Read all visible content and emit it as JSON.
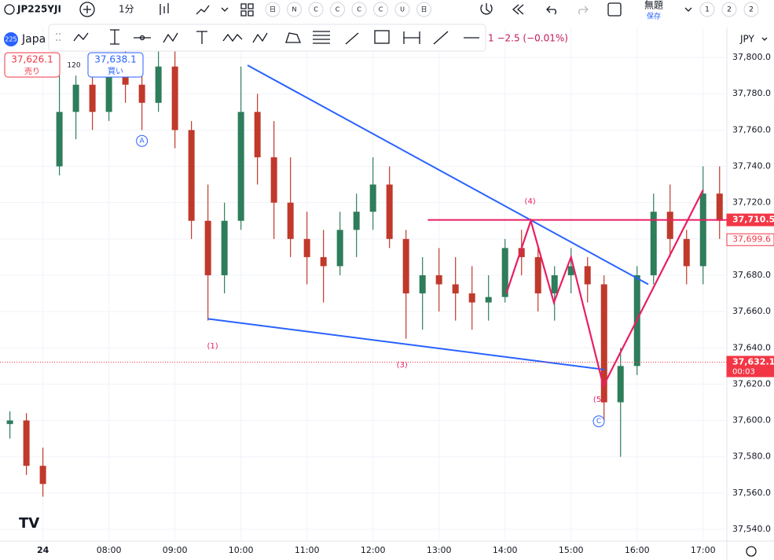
{
  "toolbar": {
    "symbol": "JP225YJI",
    "interval": "1分",
    "buttons": [
      "日",
      "N",
      "C",
      "C",
      "C",
      "C",
      "U",
      "日"
    ],
    "title": "無題",
    "save": "保存",
    "layouts": [
      "1",
      "2",
      "2"
    ]
  },
  "legend": {
    "badge": "225",
    "name": "Japa",
    "change": "1 −2.5 (−0.01%)",
    "sell_price": "37,626.1",
    "sell_label": "売り",
    "spread": "120",
    "buy_price": "37,638.1",
    "buy_label": "買い"
  },
  "chart_data": {
    "type": "candlestick",
    "currency": "JPY",
    "x": [
      6.5,
      6.75,
      7.0,
      7.25,
      7.5,
      7.75,
      8.0,
      8.25,
      8.5,
      8.75,
      9.0,
      9.25,
      9.5,
      9.75,
      10.0,
      10.25,
      10.5,
      10.75,
      11.0,
      11.25,
      11.5,
      11.75,
      12.0,
      12.25,
      12.5,
      12.75,
      13.0,
      13.25,
      13.5,
      13.75,
      14.0,
      14.25,
      14.5,
      14.75,
      15.0,
      15.25,
      15.5,
      15.75,
      16.0,
      16.25,
      16.5,
      16.75,
      17.0,
      17.25
    ],
    "ohlc": [
      [
        37598,
        37605,
        37590,
        37600
      ],
      [
        37600,
        37604,
        37570,
        37575
      ],
      [
        37575,
        37585,
        37558,
        37565
      ],
      [
        37740,
        37790,
        37735,
        37770
      ],
      [
        37770,
        37790,
        37755,
        37785
      ],
      [
        37785,
        37800,
        37760,
        37770
      ],
      [
        37770,
        37800,
        37765,
        37790
      ],
      [
        37790,
        37805,
        37775,
        37785
      ],
      [
        37785,
        37795,
        37760,
        37775
      ],
      [
        37775,
        37805,
        37770,
        37795
      ],
      [
        37795,
        37805,
        37750,
        37760
      ],
      [
        37760,
        37765,
        37700,
        37710
      ],
      [
        37710,
        37730,
        37655,
        37680
      ],
      [
        37680,
        37720,
        37670,
        37710
      ],
      [
        37710,
        37795,
        37705,
        37770
      ],
      [
        37770,
        37780,
        37730,
        37745
      ],
      [
        37745,
        37765,
        37700,
        37720
      ],
      [
        37720,
        37745,
        37690,
        37700
      ],
      [
        37700,
        37715,
        37675,
        37690
      ],
      [
        37690,
        37705,
        37665,
        37685
      ],
      [
        37685,
        37715,
        37680,
        37705
      ],
      [
        37705,
        37725,
        37690,
        37715
      ],
      [
        37715,
        37745,
        37705,
        37730
      ],
      [
        37730,
        37740,
        37695,
        37700
      ],
      [
        37700,
        37705,
        37645,
        37670
      ],
      [
        37670,
        37690,
        37650,
        37680
      ],
      [
        37680,
        37695,
        37660,
        37675
      ],
      [
        37675,
        37690,
        37655,
        37670
      ],
      [
        37670,
        37685,
        37650,
        37665
      ],
      [
        37665,
        37680,
        37655,
        37668
      ],
      [
        37668,
        37700,
        37665,
        37695
      ],
      [
        37695,
        37705,
        37680,
        37690
      ],
      [
        37690,
        37695,
        37660,
        37670
      ],
      [
        37670,
        37685,
        37655,
        37680
      ],
      [
        37680,
        37695,
        37670,
        37685
      ],
      [
        37685,
        37690,
        37665,
        37675
      ],
      [
        37675,
        37680,
        37600,
        37610
      ],
      [
        37610,
        37640,
        37580,
        37630
      ],
      [
        37630,
        37685,
        37625,
        37680
      ],
      [
        37680,
        37725,
        37675,
        37715
      ],
      [
        37715,
        37730,
        37690,
        37700
      ],
      [
        37700,
        37705,
        37675,
        37685
      ],
      [
        37685,
        37740,
        37675,
        37725
      ],
      [
        37725,
        37740,
        37700,
        37710
      ]
    ],
    "up_color": "#2e7d5b",
    "down_color": "#c0392b",
    "xlim": [
      6.35,
      17.36
    ],
    "xticks": [
      {
        "value": 7,
        "label": "24"
      },
      {
        "value": 8,
        "label": "08:00"
      },
      {
        "value": 9,
        "label": "09:00"
      },
      {
        "value": 10,
        "label": "10:00"
      },
      {
        "value": 11,
        "label": "11:00"
      },
      {
        "value": 12,
        "label": "12:00"
      },
      {
        "value": 13,
        "label": "13:00"
      },
      {
        "value": 14,
        "label": "14:00"
      },
      {
        "value": 15,
        "label": "15:00"
      },
      {
        "value": 16,
        "label": "16:00"
      },
      {
        "value": 17,
        "label": "17:00"
      }
    ],
    "ylim": [
      37533.5,
      37816.5
    ],
    "yticks": [
      {
        "value": 37540,
        "label": "37,540.0"
      },
      {
        "value": 37560,
        "label": "37,560.0"
      },
      {
        "value": 37580,
        "label": "37,580.0"
      },
      {
        "value": 37600,
        "label": "37,600.0"
      },
      {
        "value": 37620,
        "label": "37,620.0"
      },
      {
        "value": 37640,
        "label": "37,640.0"
      },
      {
        "value": 37660,
        "label": "37,660.0"
      },
      {
        "value": 37680,
        "label": "37,680.0"
      },
      {
        "value": 37700,
        "label": "37,700.0"
      },
      {
        "value": 37720,
        "label": "37,720.0"
      },
      {
        "value": 37740,
        "label": "37,740.0"
      },
      {
        "value": 37760,
        "label": "37,760.0"
      },
      {
        "value": 37780,
        "label": "37,780.0"
      },
      {
        "value": 37800,
        "label": "37,800.0"
      }
    ],
    "grid": true,
    "price_tags": [
      {
        "value": 37710.5,
        "label": "37,710.5",
        "color": "#f23645",
        "style": "solid"
      },
      {
        "value": 37699.6,
        "label": "37,699.6",
        "color": "#f23645",
        "style": "outline"
      },
      {
        "value": 37632.1,
        "label": "37,632.1",
        "countdown": "00:03",
        "color": "#f23645",
        "style": "solid"
      }
    ],
    "trendlines": [
      {
        "color": "#2962ff",
        "x": [
          10.1,
          16.17
        ],
        "y": [
          37795.7,
          37675
        ]
      },
      {
        "color": "#2962ff",
        "x": [
          9.5,
          15.51
        ],
        "y": [
          37656,
          37628
        ]
      },
      {
        "color": "#e91e63",
        "x": [
          12.83,
          17.36
        ],
        "y": [
          37710.5,
          37710.5
        ]
      }
    ],
    "wave": {
      "color": "#e91e63",
      "x": [
        14.02,
        14.39,
        14.74,
        15.0,
        15.49,
        17.0
      ],
      "y": [
        37670,
        37710,
        37665,
        37690,
        37619,
        37727
      ]
    },
    "wave_labels": [
      {
        "text": "(1)",
        "x": 9.57,
        "y": 37641
      },
      {
        "text": "(3)",
        "x": 12.44,
        "y": 37630.6
      },
      {
        "text": "(4)",
        "x": 14.38,
        "y": 37720.7
      },
      {
        "text": "(5)",
        "x": 15.42,
        "y": 37611.5
      }
    ],
    "circle_labels": [
      {
        "text": "A",
        "x": 8.5,
        "y": 37754
      },
      {
        "text": "C",
        "x": 15.42,
        "y": 37599.5
      }
    ]
  }
}
